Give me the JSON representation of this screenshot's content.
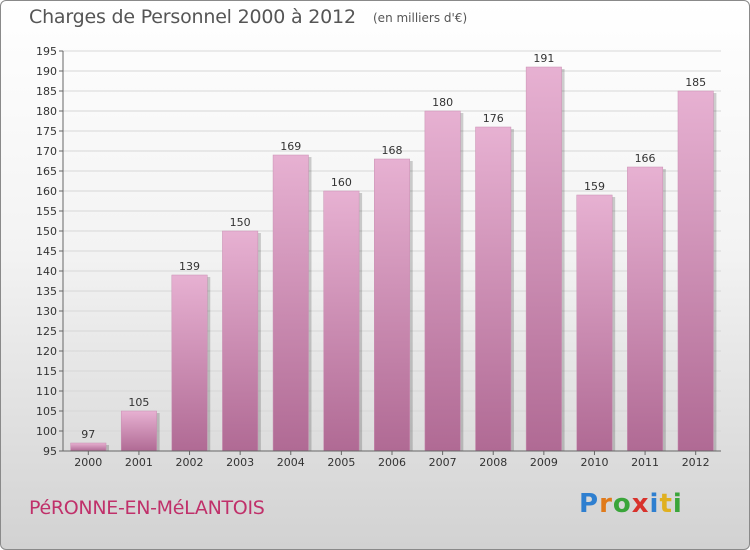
{
  "title": "Charges de Personnel 2000 à 2012",
  "subtitle": "(en milliers d'€)",
  "commune": "PéRONNE-EN-MéLANTOIS",
  "logo": {
    "text": "Proxiti",
    "letters": [
      {
        "ch": "P",
        "color": "#2e7fd0"
      },
      {
        "ch": "r",
        "color": "#e07a1a"
      },
      {
        "ch": "o",
        "color": "#3aa53a"
      },
      {
        "ch": "x",
        "color": "#d8322c"
      },
      {
        "ch": "i",
        "color": "#2e7fd0"
      },
      {
        "ch": "t",
        "color": "#e0b020"
      },
      {
        "ch": "i",
        "color": "#3aa53a"
      }
    ]
  },
  "colors": {
    "bar_light": "#e7b1d2",
    "bar_dark": "#b06a94",
    "grid": "#d7d7d7"
  },
  "chart_data": {
    "type": "bar",
    "title": "Charges de Personnel 2000 à 2012",
    "subtitle": "(en milliers d'€)",
    "categories": [
      "2000",
      "2001",
      "2002",
      "2003",
      "2004",
      "2005",
      "2006",
      "2007",
      "2008",
      "2009",
      "2010",
      "2011",
      "2012"
    ],
    "values": [
      97,
      105,
      139,
      150,
      169,
      160,
      168,
      180,
      176,
      191,
      159,
      166,
      185
    ],
    "ylim": [
      95,
      195
    ],
    "yticks": [
      95,
      100,
      105,
      110,
      115,
      120,
      125,
      130,
      135,
      140,
      145,
      150,
      155,
      160,
      165,
      170,
      175,
      180,
      185,
      190,
      195
    ],
    "grid": true,
    "xlabel": "",
    "ylabel": ""
  }
}
